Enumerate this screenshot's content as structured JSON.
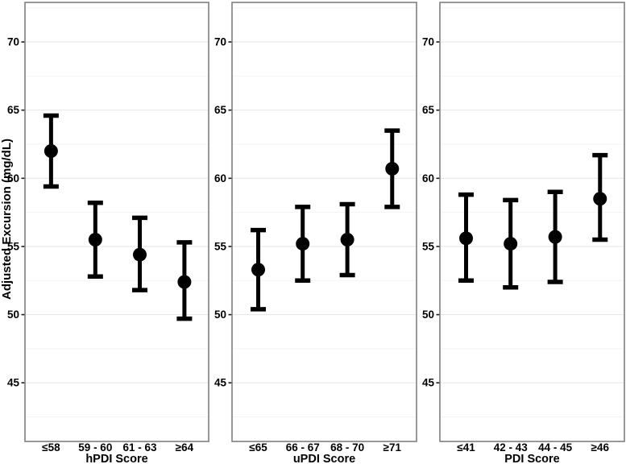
{
  "figure": {
    "ylabel": "Adjusted Excursion (mg/dL)",
    "background": "#ffffff",
    "colors": {
      "point": "#000000",
      "panel_border": "#7f7f7f",
      "grid_major": "#e7e7e7",
      "grid_minor": "#f3f3f3",
      "tick": "#1a1a1a",
      "text": "#000000"
    }
  },
  "chart_data": [
    {
      "type": "scatter",
      "title": "",
      "xlabel": "hPDI Score",
      "ylabel": "Adjusted Excursion (mg/dL)",
      "categories": [
        "≤58",
        "59 - 60",
        "61 - 63",
        "≥64"
      ],
      "series": [
        {
          "name": "adjusted-excursion",
          "values": [
            62.0,
            55.5,
            54.4,
            52.4
          ],
          "ci_low": [
            59.4,
            52.8,
            51.8,
            49.7
          ],
          "ci_high": [
            64.6,
            58.2,
            57.1,
            55.3
          ]
        }
      ],
      "yticks": [
        45,
        50,
        55,
        60,
        65,
        70
      ],
      "yticks_minor": [
        42.5,
        47.5,
        52.5,
        57.5,
        62.5,
        67.5,
        72.5
      ],
      "ylim": [
        40.7,
        72.9
      ],
      "grid": "on",
      "legend": "none"
    },
    {
      "type": "scatter",
      "title": "",
      "xlabel": "uPDI Score",
      "ylabel": "Adjusted Excursion (mg/dL)",
      "categories": [
        "≤65",
        "66 - 67",
        "68 - 70",
        "≥71"
      ],
      "series": [
        {
          "name": "adjusted-excursion",
          "values": [
            53.3,
            55.2,
            55.5,
            60.7
          ],
          "ci_low": [
            50.4,
            52.5,
            52.9,
            57.9
          ],
          "ci_high": [
            56.2,
            57.9,
            58.1,
            63.5
          ]
        }
      ],
      "yticks": [
        45,
        50,
        55,
        60,
        65,
        70
      ],
      "yticks_minor": [
        42.5,
        47.5,
        52.5,
        57.5,
        62.5,
        67.5,
        72.5
      ],
      "ylim": [
        40.7,
        72.9
      ],
      "grid": "on",
      "legend": "none"
    },
    {
      "type": "scatter",
      "title": "",
      "xlabel": "PDI Score",
      "ylabel": "Adjusted Excursion (mg/dL)",
      "categories": [
        "≤41",
        "42 - 43",
        "44 - 45",
        "≥46"
      ],
      "series": [
        {
          "name": "adjusted-excursion",
          "values": [
            55.6,
            55.2,
            55.7,
            58.5
          ],
          "ci_low": [
            52.5,
            52.0,
            52.4,
            55.5
          ],
          "ci_high": [
            58.8,
            58.4,
            59.0,
            61.7
          ]
        }
      ],
      "yticks": [
        45,
        50,
        55,
        60,
        65,
        70
      ],
      "yticks_minor": [
        42.5,
        47.5,
        52.5,
        57.5,
        62.5,
        67.5,
        72.5
      ],
      "ylim": [
        40.7,
        72.9
      ],
      "grid": "on",
      "legend": "none"
    }
  ]
}
